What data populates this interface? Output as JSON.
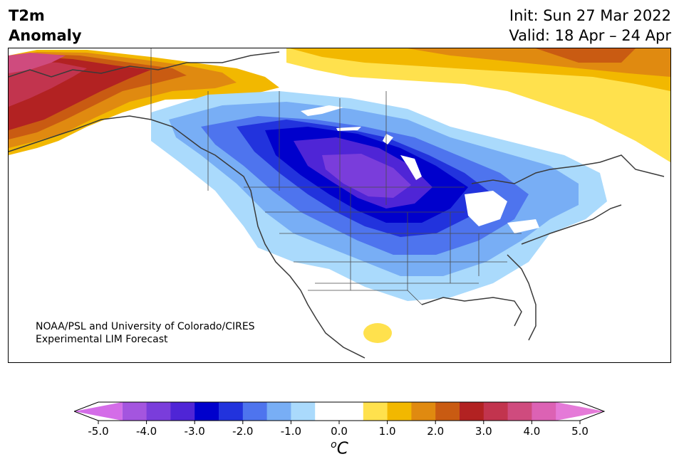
{
  "header": {
    "title_line1": "T2m",
    "title_line2": "Anomaly",
    "init_text": "Init: Sun 27 Mar 2022",
    "valid_text": "Valid: 18 Apr – 24 Apr"
  },
  "map": {
    "credit_line1": "NOAA/PSL and University of Colorado/CIRES",
    "credit_line2": "Experimental LIM Forecast"
  },
  "colorbar": {
    "unit_base": "C",
    "unit_sup": "o",
    "tick_labels": [
      "-5.0",
      "-4.0",
      "-3.0",
      "-2.0",
      "-1.0",
      "0.0",
      "1.0",
      "2.0",
      "3.0",
      "4.0",
      "5.0"
    ],
    "colors": [
      "#d46de8",
      "#a455df",
      "#7a3ddb",
      "#4f25d6",
      "#0000cc",
      "#2233dd",
      "#4e74ee",
      "#78aef5",
      "#aadafc",
      "#ffffff",
      "#ffffff",
      "#ffe14d",
      "#f2b800",
      "#e08a10",
      "#c95b12",
      "#b22222",
      "#c2344e",
      "#cf4b7e",
      "#dc62b4",
      "#e57ad8"
    ]
  }
}
